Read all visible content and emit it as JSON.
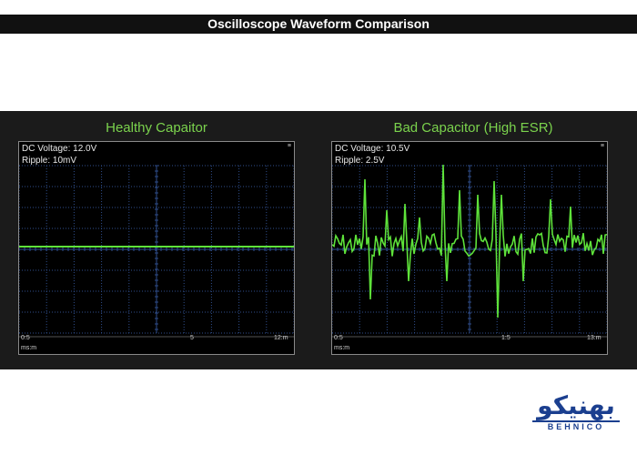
{
  "title": "Oscilloscope Waveform Comparison",
  "colors": {
    "trace": "#5ee23a",
    "grid": "#2f4e8c",
    "title_green": "#7bd34d",
    "logo_blue": "#1b3f8f"
  },
  "left_panel": {
    "title": "Healthy Capaitor",
    "readouts": [
      "DC Voltage: 12.0V",
      "Ripple: 10mV"
    ],
    "corner": "≡",
    "x_labels": [
      "0:5",
      "5",
      "12:m"
    ],
    "unit": "ms:m",
    "signal_level": 0.0
  },
  "right_panel": {
    "title": "Bad Capacitor (High ESR)",
    "readouts": [
      "DC Voltage: 10.5V",
      "Ripple: 2.5V"
    ],
    "corner": "≡",
    "x_labels": [
      "0:5",
      "1:5",
      "13:m"
    ],
    "unit": "ms:m"
  },
  "logo": {
    "text_fa": "بهنیکو",
    "text_en": "BEHNICO"
  }
}
